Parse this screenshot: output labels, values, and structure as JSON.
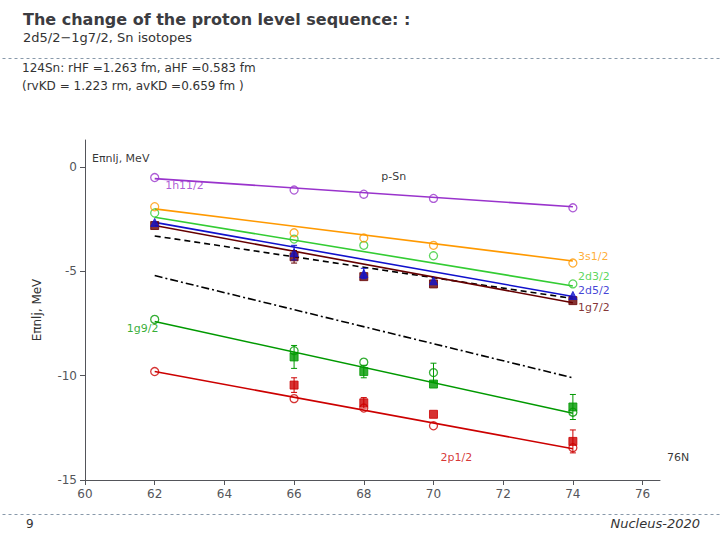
{
  "chart_data": {
    "type": "scatter",
    "title": "The change of the proton level sequence: : ",
    "subtitle": "2d5/2−1g7/2, Sn isotopes",
    "info_lines": [
      "124Sn: rHF =1.263 fm, aHF =0.583 fm",
      "(rvKD = 1.223 rm, avKD =0.659 fm )"
    ],
    "slide_number": "9",
    "footer": "Nucleus-2020",
    "ylabel": "Eπnlj, MeV",
    "xlim": [
      60,
      76.5
    ],
    "ylim": [
      -15,
      1.3
    ],
    "xticks": [
      60,
      62,
      64,
      66,
      68,
      70,
      72,
      74,
      76
    ],
    "yticks": [
      0,
      -5,
      -10,
      -15
    ],
    "grid": false,
    "series": [
      {
        "type": "line",
        "color": "#000000",
        "line_style": "dashed",
        "x": [
          62,
          74
        ],
        "values": [
          -3.3,
          -6.3
        ]
      },
      {
        "type": "line",
        "color": "#000000",
        "line_style": "dashdot",
        "x": [
          62,
          74
        ],
        "values": [
          -5.2,
          -10.1
        ]
      },
      {
        "type": "line",
        "color": "#cc0000",
        "line_style": "solid",
        "x": [
          62,
          74
        ],
        "values": [
          -9.8,
          -13.5
        ]
      },
      {
        "type": "scatter",
        "color": "#cc0000",
        "marker": "circle_open",
        "x": [
          62,
          66,
          68,
          70,
          74
        ],
        "values": [
          -9.8,
          -11.1,
          -11.55,
          -12.4,
          -13.45
        ]
      },
      {
        "type": "scatter",
        "color": "#cc0000",
        "marker": "square",
        "x": [
          66,
          68,
          70,
          74
        ],
        "values": [
          -10.45,
          -11.3,
          -11.85,
          -13.15
        ],
        "errors": [
          0.35,
          0.25,
          null,
          0.55
        ]
      },
      {
        "type": "line",
        "color": "#009900",
        "line_style": "solid",
        "x": [
          62,
          74
        ],
        "values": [
          -7.4,
          -11.8
        ]
      },
      {
        "type": "scatter",
        "color": "#009900",
        "marker": "circle_open",
        "x": [
          62,
          66,
          68,
          70,
          74
        ],
        "values": [
          -7.3,
          -8.8,
          -9.35,
          -9.85,
          -11.75
        ],
        "errors": [
          null,
          null,
          null,
          0.45,
          null
        ]
      },
      {
        "type": "scatter",
        "color": "#009900",
        "marker": "square",
        "x": [
          66,
          68,
          70,
          74
        ],
        "values": [
          -9.1,
          -9.8,
          -10.4,
          -11.5
        ],
        "errors": [
          0.55,
          0.3,
          null,
          0.6
        ]
      },
      {
        "type": "line",
        "color": "#660000",
        "line_style": "solid",
        "x": [
          62,
          74
        ],
        "values": [
          -2.8,
          -6.5
        ]
      },
      {
        "type": "scatter",
        "color": "#660000",
        "marker": "square",
        "x": [
          62,
          66,
          68,
          70,
          74
        ],
        "values": [
          -2.8,
          -4.3,
          -5.25,
          -5.6,
          -6.4
        ],
        "errors": [
          null,
          0.3,
          null,
          null,
          null
        ]
      },
      {
        "type": "line",
        "color": "#1111cc",
        "line_style": "solid",
        "x": [
          62,
          74
        ],
        "values": [
          -2.65,
          -6.2
        ]
      },
      {
        "type": "scatter",
        "color": "#1111cc",
        "marker": "triangle",
        "x": [
          62,
          66,
          68,
          70,
          74
        ],
        "values": [
          -2.65,
          -4.1,
          -5.1,
          -5.45,
          -6.15
        ],
        "errors": [
          null,
          0.35,
          0.25,
          null,
          null
        ]
      },
      {
        "type": "line",
        "color": "#33cc33",
        "line_style": "solid",
        "x": [
          62,
          74
        ],
        "values": [
          -2.4,
          -5.7
        ]
      },
      {
        "type": "scatter",
        "color": "#33cc33",
        "marker": "circle_open",
        "x": [
          62,
          66,
          68,
          70,
          74
        ],
        "values": [
          -2.2,
          -3.45,
          -3.75,
          -4.25,
          -5.6
        ]
      },
      {
        "type": "line",
        "color": "#ff9900",
        "line_style": "solid",
        "x": [
          62,
          74
        ],
        "values": [
          -2.0,
          -4.5
        ]
      },
      {
        "type": "scatter",
        "color": "#ff9900",
        "marker": "circle_open",
        "x": [
          62,
          66,
          68,
          70,
          74
        ],
        "values": [
          -1.9,
          -3.15,
          -3.4,
          -3.75,
          -4.6
        ]
      },
      {
        "type": "line",
        "color": "#9933cc",
        "line_style": "solid",
        "x": [
          62,
          74
        ],
        "values": [
          -0.55,
          -1.9
        ]
      },
      {
        "type": "scatter",
        "color": "#9933cc",
        "marker": "circle_open",
        "x": [
          62,
          66,
          68,
          70,
          74
        ],
        "values": [
          -0.5,
          -1.1,
          -1.3,
          -1.5,
          -1.95
        ]
      }
    ],
    "annotations": [
      {
        "text": "1h11/2",
        "x": 62.3,
        "y": -1.15,
        "color": "#9933cc"
      },
      {
        "text": "3s1/2",
        "x": 74.15,
        "y": -4.55,
        "color": "#ff9900"
      },
      {
        "text": "2d3/2",
        "x": 74.15,
        "y": -5.5,
        "color": "#33cc33"
      },
      {
        "text": "2d5/2",
        "x": 74.15,
        "y": -6.2,
        "color": "#1111cc"
      },
      {
        "text": "1g7/2",
        "x": 74.15,
        "y": -7.0,
        "color": "#660000"
      },
      {
        "text": "1g9/2",
        "x": 61.2,
        "y": -8.0,
        "color": "#009900"
      },
      {
        "text": "2p1/2",
        "x": 70.2,
        "y": -14.2,
        "color": "#cc0000"
      },
      {
        "text": "76N",
        "x": 76.7,
        "y": -14.2
      },
      {
        "text": "p-Sn",
        "x": 68.5,
        "y": -0.7
      },
      {
        "text": "Eπnlj, MeV",
        "x": 60.2,
        "y": 0.15
      }
    ]
  }
}
